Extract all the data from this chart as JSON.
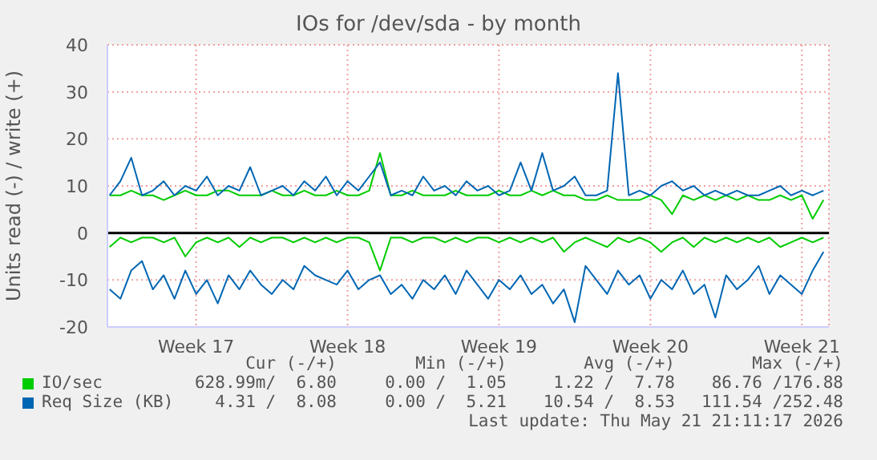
{
  "chart_data": {
    "type": "line",
    "title": "IOs for /dev/sda - by month",
    "ylabel": "Units read (-) / write (+)",
    "categories": [
      null,
      null,
      null,
      null,
      null,
      null,
      null,
      null,
      "Week 17",
      null,
      null,
      null,
      null,
      null,
      null,
      null,
      null,
      null,
      null,
      null,
      null,
      null,
      "Week 18",
      null,
      null,
      null,
      null,
      null,
      null,
      null,
      null,
      null,
      null,
      null,
      null,
      null,
      "Week 19",
      null,
      null,
      null,
      null,
      null,
      null,
      null,
      null,
      null,
      null,
      null,
      null,
      null,
      "Week 20",
      null,
      null,
      null,
      null,
      null,
      null,
      null,
      null,
      null,
      null,
      null,
      null,
      null,
      "Week 21",
      null,
      null
    ],
    "series": [
      {
        "name": "IO/sec",
        "color": "#00cc00",
        "values": [
          8,
          8,
          9,
          8,
          8,
          7,
          8,
          9,
          8,
          8,
          9,
          9,
          8,
          8,
          8,
          9,
          8,
          8,
          9,
          8,
          8,
          9,
          8,
          8,
          9,
          17,
          8,
          8,
          9,
          8,
          8,
          8,
          9,
          8,
          8,
          8,
          9,
          8,
          8,
          9,
          8,
          9,
          8,
          8,
          7,
          7,
          8,
          7,
          7,
          7,
          8,
          7,
          4,
          8,
          7,
          8,
          7,
          8,
          7,
          8,
          7,
          7,
          8,
          7,
          8,
          3,
          7
        ]
      },
      {
        "color": "#00cc00",
        "values": [
          -3,
          -1,
          -2,
          -1,
          -1,
          -2,
          -1,
          -5,
          -2,
          -1,
          -2,
          -1,
          -3,
          -1,
          -2,
          -1,
          -1,
          -2,
          -1,
          -2,
          -1,
          -2,
          -1,
          -1,
          -2,
          -8,
          -1,
          -1,
          -2,
          -1,
          -1,
          -2,
          -1,
          -2,
          -1,
          -1,
          -2,
          -1,
          -2,
          -1,
          -2,
          -1,
          -4,
          -2,
          -1,
          -2,
          -3,
          -1,
          -2,
          -1,
          -2,
          -4,
          -2,
          -1,
          -3,
          -1,
          -2,
          -1,
          -2,
          -1,
          -2,
          -1,
          -3,
          -2,
          -1,
          -2,
          -1
        ]
      },
      {
        "name": "Req Size (KB)",
        "color": "#0066b3",
        "values": [
          8,
          11,
          16,
          8,
          9,
          11,
          8,
          10,
          9,
          12,
          8,
          10,
          9,
          14,
          8,
          9,
          10,
          8,
          11,
          9,
          12,
          8,
          11,
          9,
          12,
          15,
          8,
          9,
          8,
          12,
          9,
          10,
          8,
          11,
          9,
          10,
          8,
          9,
          15,
          9,
          17,
          9,
          10,
          12,
          8,
          8,
          9,
          34,
          8,
          9,
          8,
          10,
          11,
          9,
          10,
          8,
          9,
          8,
          9,
          8,
          8,
          9,
          10,
          8,
          9,
          8,
          9
        ]
      },
      {
        "color": "#0066b3",
        "values": [
          -12,
          -14,
          -8,
          -6,
          -12,
          -9,
          -14,
          -8,
          -13,
          -10,
          -15,
          -9,
          -12,
          -8,
          -11,
          -13,
          -10,
          -12,
          -7,
          -9,
          -10,
          -11,
          -8,
          -12,
          -10,
          -9,
          -13,
          -11,
          -14,
          -10,
          -12,
          -9,
          -13,
          -8,
          -11,
          -14,
          -10,
          -12,
          -9,
          -13,
          -11,
          -15,
          -12,
          -19,
          -7,
          -10,
          -13,
          -8,
          -11,
          -9,
          -14,
          -10,
          -12,
          -8,
          -13,
          -11,
          -18,
          -9,
          -12,
          -10,
          -7,
          -13,
          -9,
          -11,
          -13,
          -8,
          -4
        ]
      }
    ],
    "ylim": [
      -20,
      40
    ],
    "yticks": [
      -20,
      -10,
      0,
      10,
      20,
      30,
      40
    ],
    "ref_lines": [
      {
        "axis": "y",
        "value": 0,
        "color": "#000000"
      }
    ],
    "grid": true,
    "legend": "bottom",
    "marker": "none",
    "line_style": "solid",
    "annotations": [
      "Cur (-/+)",
      "Min (-/+)",
      "Avg (-/+)",
      "Max (-/+)",
      "628.99m/  6.80",
      "0.00 /  1.05",
      "1.22 /  7.78",
      "86.76 /176.88",
      "4.31 /  8.08",
      "0.00 /  5.21",
      "10.54 /  8.53",
      "111.54 /252.48",
      "Last update: Thu May 21 21:11:17 2026"
    ]
  }
}
